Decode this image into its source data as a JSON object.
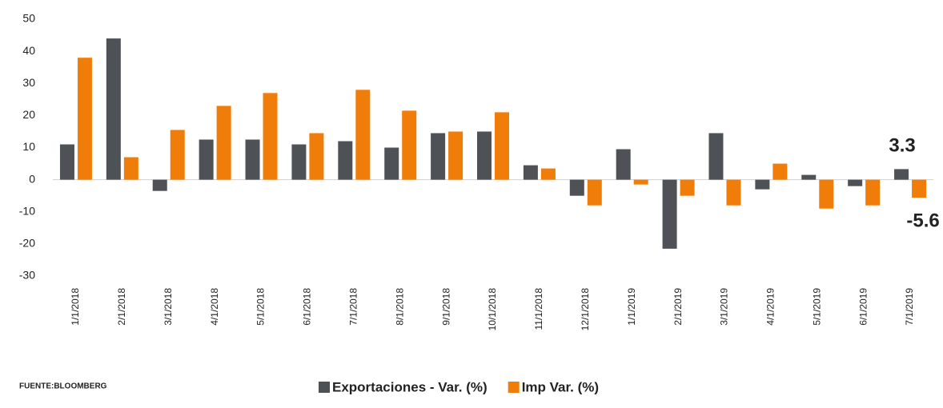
{
  "chart_data": {
    "type": "bar",
    "categories": [
      "1/1/2018",
      "2/1/2018",
      "3/1/2018",
      "4/1/2018",
      "5/1/2018",
      "6/1/2018",
      "7/1/2018",
      "8/1/2018",
      "9/1/2018",
      "10/1/2018",
      "11/1/2018",
      "12/1/2018",
      "1/1/2019",
      "2/1/2019",
      "3/1/2019",
      "4/1/2019",
      "5/1/2019",
      "6/1/2019",
      "7/1/2019"
    ],
    "series": [
      {
        "name": "Exportaciones - Var. (%)",
        "color": "#4e5156",
        "values": [
          11,
          44,
          -3.5,
          12.5,
          12.5,
          11,
          12,
          10,
          14.5,
          15,
          4.5,
          -5,
          9.5,
          -21.5,
          14.5,
          -3,
          1.5,
          -2,
          3.3
        ]
      },
      {
        "name": "Imp Var. (%)",
        "color": "#f07d0a",
        "values": [
          38,
          7,
          15.5,
          23,
          27,
          14.5,
          28,
          21.5,
          15,
          21,
          3.5,
          -8,
          -1.5,
          -5,
          -8,
          5,
          -9,
          -8,
          -5.6
        ]
      }
    ],
    "ylim": [
      -30,
      50
    ],
    "yticks": [
      -30,
      -20,
      -10,
      0,
      10,
      20,
      30,
      40,
      50
    ],
    "legend": "bottom",
    "source": "FUENTE:BLOOMBERG"
  }
}
